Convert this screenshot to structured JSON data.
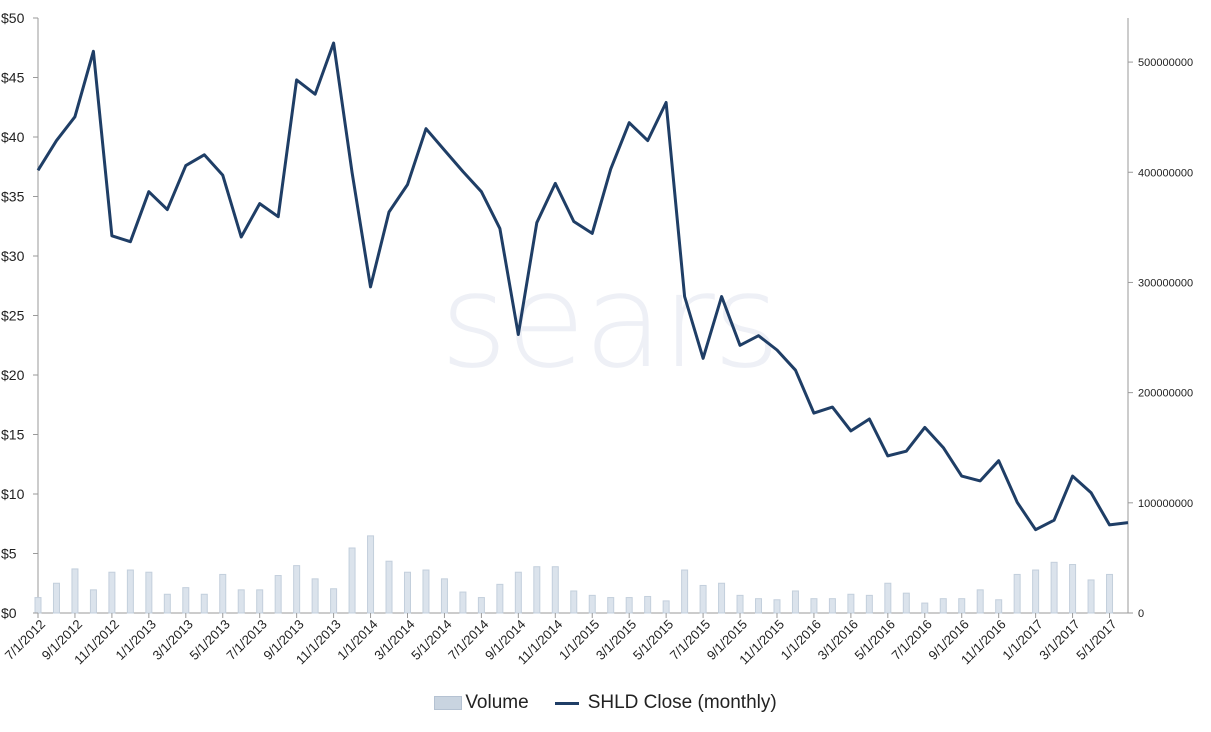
{
  "colors": {
    "line": "#1f3e66",
    "bar_fill": "#dbe3ec",
    "bar_stroke": "#c3cfdc",
    "axis": "#9a9a9a"
  },
  "watermark": "sears",
  "legend": {
    "volume": "Volume",
    "close": "SHLD Close (monthly)"
  },
  "chart_data": {
    "type": "line",
    "title": "",
    "xlabel": "",
    "ylabel": "",
    "ylim": [
      0,
      50
    ],
    "y2lim": [
      0,
      540000000
    ],
    "y_ticks": [
      "$0",
      "$5",
      "$10",
      "$15",
      "$20",
      "$25",
      "$30",
      "$35",
      "$40",
      "$45",
      "$50"
    ],
    "y2_ticks": [
      "0",
      "100000000",
      "200000000",
      "300000000",
      "400000000",
      "500000000"
    ],
    "x_tick_labels": [
      "7/1/2012",
      "9/1/2012",
      "11/1/2012",
      "1/1/2013",
      "3/1/2013",
      "5/1/2013",
      "7/1/2013",
      "9/1/2013",
      "11/1/2013",
      "1/1/2014",
      "3/1/2014",
      "5/1/2014",
      "7/1/2014",
      "9/1/2014",
      "11/1/2014",
      "1/1/2015",
      "3/1/2015",
      "5/1/2015",
      "7/1/2015",
      "9/1/2015",
      "11/1/2015",
      "1/1/2016",
      "3/1/2016",
      "5/1/2016",
      "7/1/2016",
      "9/1/2016",
      "11/1/2016",
      "1/1/2017",
      "3/1/2017",
      "5/1/2017"
    ],
    "series": [
      {
        "name": "SHLD Close (monthly)",
        "axis": "left",
        "kind": "line",
        "values": [
          37.2,
          39.7,
          41.7,
          47.2,
          31.7,
          31.2,
          35.4,
          33.9,
          37.6,
          38.5,
          36.8,
          31.6,
          34.4,
          33.3,
          44.8,
          43.6,
          47.9,
          37.0,
          27.4,
          33.7,
          36.0,
          40.7,
          38.9,
          37.1,
          35.4,
          32.3,
          23.4,
          32.8,
          36.1,
          32.9,
          31.9,
          37.3,
          41.2,
          39.7,
          42.9,
          26.6,
          21.4,
          26.6,
          22.5,
          23.3,
          22.1,
          20.4,
          16.8,
          17.3,
          15.3,
          16.3,
          13.2,
          13.6,
          15.6,
          13.9,
          11.5,
          11.1,
          12.8,
          9.3,
          7.0,
          7.8,
          11.5,
          10.1,
          7.4,
          7.6
        ]
      },
      {
        "name": "Volume",
        "axis": "right",
        "kind": "bar",
        "values": [
          14000000,
          27000000,
          40000000,
          21000000,
          37000000,
          39000000,
          37000000,
          17000000,
          23000000,
          17000000,
          35000000,
          21000000,
          21000000,
          34000000,
          43000000,
          31000000,
          22000000,
          59000000,
          70000000,
          47000000,
          37000000,
          39000000,
          31000000,
          19000000,
          14000000,
          26000000,
          37000000,
          42000000,
          42000000,
          20000000,
          16000000,
          14000000,
          14000000,
          15000000,
          11000000,
          39000000,
          25000000,
          27000000,
          16000000,
          13000000,
          12000000,
          20000000,
          13000000,
          13000000,
          17000000,
          16000000,
          27000000,
          18000000,
          9000000,
          13000000,
          13000000,
          21000000,
          12000000,
          35000000,
          39000000,
          46000000,
          44000000,
          30000000,
          35000000,
          0
        ]
      }
    ],
    "grid": false,
    "legend_position": "bottom"
  }
}
